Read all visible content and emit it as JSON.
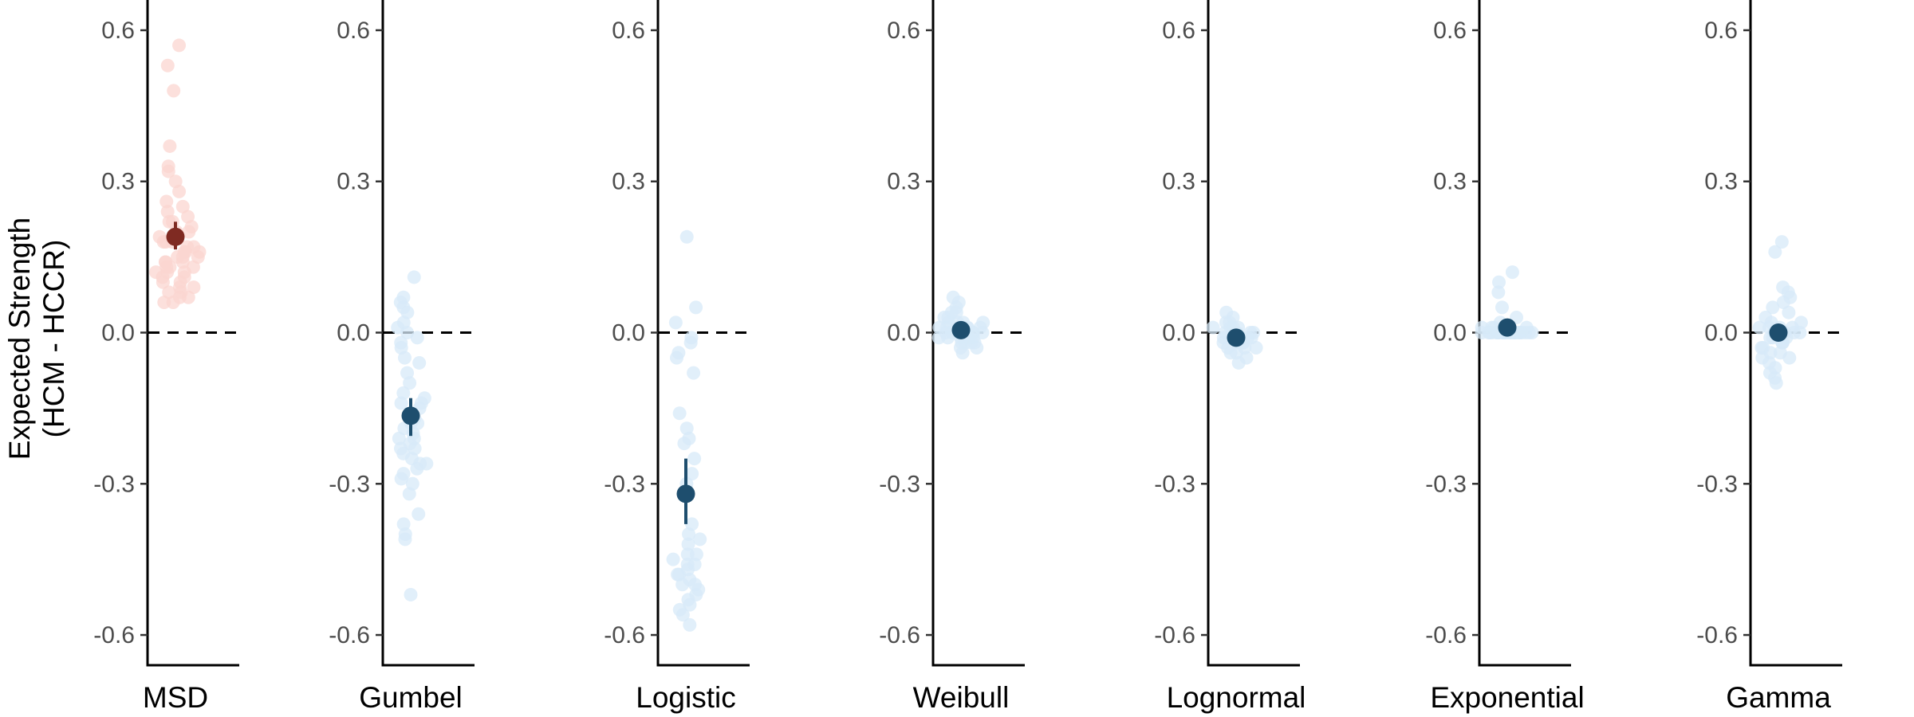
{
  "chart_data": {
    "type": "scatter",
    "ylabel_lines": [
      "Expected Strength",
      "(HCM - HCCR)"
    ],
    "ylim": [
      -0.66,
      0.66
    ],
    "yticks": [
      0.6,
      0.3,
      0.0,
      -0.3,
      -0.6
    ],
    "ytick_labels": [
      "0.6",
      "0.3",
      "0.0",
      "-0.3",
      "-0.6"
    ],
    "colors": {
      "msd_point": "#fbd5d0",
      "msd_mean": "#7f2a22",
      "other_point": "#d7eaf8",
      "other_mean": "#1e4e6e",
      "axis": "#000000",
      "zero_line": "#000000"
    },
    "panels": [
      {
        "name": "MSD",
        "mean": 0.19,
        "ci": [
          0.165,
          0.22
        ],
        "points": [
          0.57,
          0.53,
          0.48,
          0.37,
          0.33,
          0.32,
          0.3,
          0.28,
          0.26,
          0.25,
          0.24,
          0.23,
          0.22,
          0.22,
          0.21,
          0.2,
          0.2,
          0.19,
          0.18,
          0.18,
          0.17,
          0.17,
          0.16,
          0.16,
          0.15,
          0.15,
          0.15,
          0.14,
          0.14,
          0.13,
          0.13,
          0.12,
          0.12,
          0.11,
          0.11,
          0.1,
          0.1,
          0.09,
          0.09,
          0.08,
          0.08,
          0.07,
          0.07,
          0.06,
          0.06,
          0.16,
          0.18,
          0.14,
          0.13,
          0.12
        ]
      },
      {
        "name": "Gumbel",
        "mean": -0.165,
        "ci": [
          -0.205,
          -0.13
        ],
        "points": [
          0.11,
          0.07,
          0.06,
          0.05,
          0.04,
          0.02,
          0.01,
          0.0,
          -0.01,
          -0.02,
          -0.03,
          -0.05,
          -0.06,
          -0.08,
          -0.1,
          -0.12,
          -0.13,
          -0.14,
          -0.15,
          -0.16,
          -0.17,
          -0.18,
          -0.19,
          -0.2,
          -0.21,
          -0.22,
          -0.23,
          -0.24,
          -0.25,
          -0.26,
          -0.27,
          -0.28,
          -0.29,
          -0.3,
          -0.32,
          -0.36,
          -0.38,
          -0.41,
          -0.4,
          -0.52,
          -0.18,
          -0.21,
          -0.23,
          -0.14,
          -0.26
        ]
      },
      {
        "name": "Logistic",
        "mean": -0.32,
        "ci": [
          -0.38,
          -0.25
        ],
        "points": [
          0.19,
          0.05,
          0.02,
          -0.01,
          -0.02,
          -0.04,
          -0.05,
          -0.08,
          -0.16,
          -0.19,
          -0.21,
          -0.22,
          -0.25,
          -0.28,
          -0.3,
          -0.38,
          -0.4,
          -0.41,
          -0.42,
          -0.44,
          -0.45,
          -0.46,
          -0.47,
          -0.48,
          -0.49,
          -0.5,
          -0.51,
          -0.52,
          -0.53,
          -0.54,
          -0.55,
          -0.56,
          -0.58,
          -0.46,
          -0.48,
          -0.44,
          -0.5
        ]
      },
      {
        "name": "Weibull",
        "mean": 0.005,
        "ci": [
          -0.005,
          0.015
        ],
        "points": [
          0.07,
          0.06,
          0.05,
          0.04,
          0.04,
          0.03,
          0.03,
          0.02,
          0.02,
          0.02,
          0.01,
          0.01,
          0.01,
          0.01,
          0.0,
          0.0,
          0.0,
          0.0,
          0.0,
          -0.01,
          -0.01,
          -0.01,
          -0.01,
          -0.02,
          -0.02,
          -0.02,
          -0.03,
          -0.03,
          -0.04,
          0.01,
          0.0,
          -0.01,
          0.02,
          0.0,
          0.01,
          -0.02,
          0.0,
          0.01
        ]
      },
      {
        "name": "Lognormal",
        "mean": -0.01,
        "ci": [
          -0.02,
          0.0
        ],
        "points": [
          0.04,
          0.03,
          0.02,
          0.02,
          0.01,
          0.01,
          0.01,
          0.0,
          0.0,
          0.0,
          0.0,
          -0.01,
          -0.01,
          -0.01,
          -0.01,
          -0.02,
          -0.02,
          -0.02,
          -0.02,
          -0.03,
          -0.03,
          -0.04,
          -0.04,
          -0.05,
          -0.06,
          0.0,
          -0.01,
          -0.02,
          0.01,
          -0.01,
          -0.03,
          0.0
        ]
      },
      {
        "name": "Exponential",
        "mean": 0.01,
        "ci": [
          0.003,
          0.017
        ],
        "points": [
          0.12,
          0.1,
          0.08,
          0.05,
          0.03,
          0.02,
          0.01,
          0.01,
          0.01,
          0.01,
          0.0,
          0.0,
          0.0,
          0.0,
          0.0,
          0.0,
          0.0,
          0.0,
          0.0,
          0.0,
          0.0,
          0.0,
          0.0,
          0.0,
          0.0,
          0.0,
          0.0,
          0.0,
          0.0,
          0.0,
          0.0,
          0.0,
          0.0,
          0.0,
          0.0
        ]
      },
      {
        "name": "Gamma",
        "mean": 0.0,
        "ci": [
          -0.015,
          0.015
        ],
        "points": [
          0.18,
          0.16,
          0.09,
          0.08,
          0.07,
          0.06,
          0.05,
          0.04,
          0.03,
          0.02,
          0.01,
          0.01,
          0.01,
          0.0,
          0.0,
          0.0,
          0.0,
          -0.01,
          -0.01,
          -0.02,
          -0.02,
          -0.03,
          -0.03,
          -0.04,
          -0.05,
          -0.05,
          -0.06,
          -0.07,
          -0.08,
          -0.09,
          -0.1,
          0.02,
          0.0,
          -0.01,
          0.01,
          -0.02,
          0.0,
          -0.04
        ]
      }
    ]
  }
}
